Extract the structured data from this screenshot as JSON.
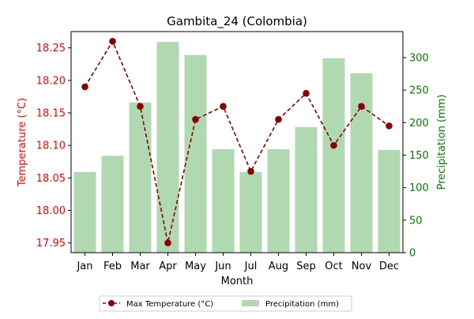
{
  "chart_data": {
    "type": "bar+line",
    "title": "Gambita_24 (Colombia)",
    "xlabel": "Month",
    "categories": [
      "Jan",
      "Feb",
      "Mar",
      "Apr",
      "May",
      "Jun",
      "Jul",
      "Aug",
      "Sep",
      "Oct",
      "Nov",
      "Dec"
    ],
    "left_axis": {
      "label": "Temperature (°C)",
      "ylim": [
        17.935,
        18.275
      ],
      "ticks": [
        "17.95",
        "18.00",
        "18.05",
        "18.10",
        "18.15",
        "18.20",
        "18.25"
      ],
      "color": "#ff0000"
    },
    "right_axis": {
      "label": "Precipitation (mm)",
      "ylim": [
        0,
        340
      ],
      "ticks": [
        "0",
        "50",
        "100",
        "150",
        "200",
        "250",
        "300"
      ],
      "color": "#008000"
    },
    "series": [
      {
        "name": "Max Temperature (°C)",
        "kind": "line",
        "axis": "left",
        "color": "#8b0000",
        "style": "dashed",
        "marker": "circle",
        "values": [
          18.19,
          18.26,
          18.16,
          17.95,
          18.14,
          18.16,
          18.06,
          18.14,
          18.18,
          18.1,
          18.16,
          18.13
        ]
      },
      {
        "name": "Precipitation (mm)",
        "kind": "bar",
        "axis": "right",
        "color": "#b1d9b1",
        "values": [
          124,
          149,
          231,
          324,
          304,
          159,
          124,
          159,
          193,
          299,
          276,
          158
        ]
      }
    ],
    "legend": {
      "placement": "bottom-center"
    },
    "grid": false
  }
}
